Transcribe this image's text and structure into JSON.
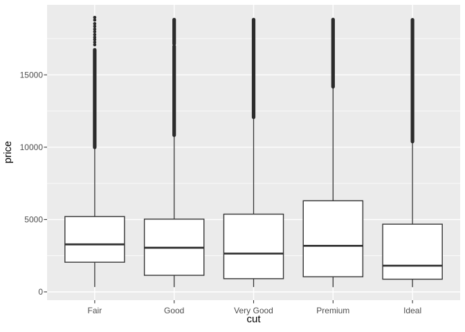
{
  "chart_data": {
    "type": "boxplot",
    "title": "",
    "xlabel": "cut",
    "ylabel": "price",
    "categories": [
      "Fair",
      "Good",
      "Very Good",
      "Premium",
      "Ideal"
    ],
    "y_ticks": [
      0,
      5000,
      10000,
      15000
    ],
    "y_tick_labels": [
      "0",
      "5000",
      "10000",
      "15000"
    ],
    "y_minor_ticks": [
      2500,
      7500,
      12500,
      17500
    ],
    "ylim": [
      -574,
      19838
    ],
    "grid": true,
    "legend": "none",
    "boxes": [
      {
        "category": "Fair",
        "whisker_low": 337,
        "q1": 2050,
        "median": 3282,
        "q3": 5206,
        "whisker_high": 9900,
        "outlier_segments": [
          {
            "from": 18970,
            "to": 18660,
            "style": "dots"
          },
          {
            "from": 18540,
            "to": 18270,
            "style": "dots"
          },
          {
            "from": 18160,
            "to": 17890,
            "style": "dots"
          },
          {
            "from": 17780,
            "to": 17550,
            "style": "dots"
          },
          {
            "from": 17440,
            "to": 17070,
            "style": "dots"
          },
          {
            "from": 16730,
            "to": 9990,
            "style": "solid"
          }
        ]
      },
      {
        "category": "Good",
        "whisker_low": 327,
        "q1": 1145,
        "median": 3050,
        "q3": 5028,
        "whisker_high": 10810,
        "outlier_segments": [
          {
            "from": 18820,
            "to": 17140,
            "style": "solid"
          },
          {
            "from": 16980,
            "to": 10830,
            "style": "solid"
          }
        ]
      },
      {
        "category": "Very Good",
        "whisker_low": 336,
        "q1": 912,
        "median": 2648,
        "q3": 5373,
        "whisker_high": 12047,
        "outlier_segments": [
          {
            "from": 18820,
            "to": 12070,
            "style": "solid"
          }
        ]
      },
      {
        "category": "Premium",
        "whisker_low": 326,
        "q1": 1046,
        "median": 3185,
        "q3": 6296,
        "whisker_high": 14160,
        "outlier_segments": [
          {
            "from": 18823,
            "to": 14180,
            "style": "solid"
          }
        ]
      },
      {
        "category": "Ideal",
        "whisker_low": 326,
        "q1": 878,
        "median": 1810,
        "q3": 4679,
        "whisker_high": 10372,
        "outlier_segments": [
          {
            "from": 18806,
            "to": 10390,
            "style": "solid"
          }
        ]
      }
    ]
  },
  "style": {
    "panel_bg": "#EBEBEB",
    "grid_color": "#FFFFFF",
    "box_stroke": "#333333",
    "box_fill": "#FFFFFF",
    "outlier_color": "#2B2B2B",
    "tick_mark_color": "#333333",
    "tick_text_color": "#4D4D4D",
    "axis_title_color": "#000000"
  }
}
